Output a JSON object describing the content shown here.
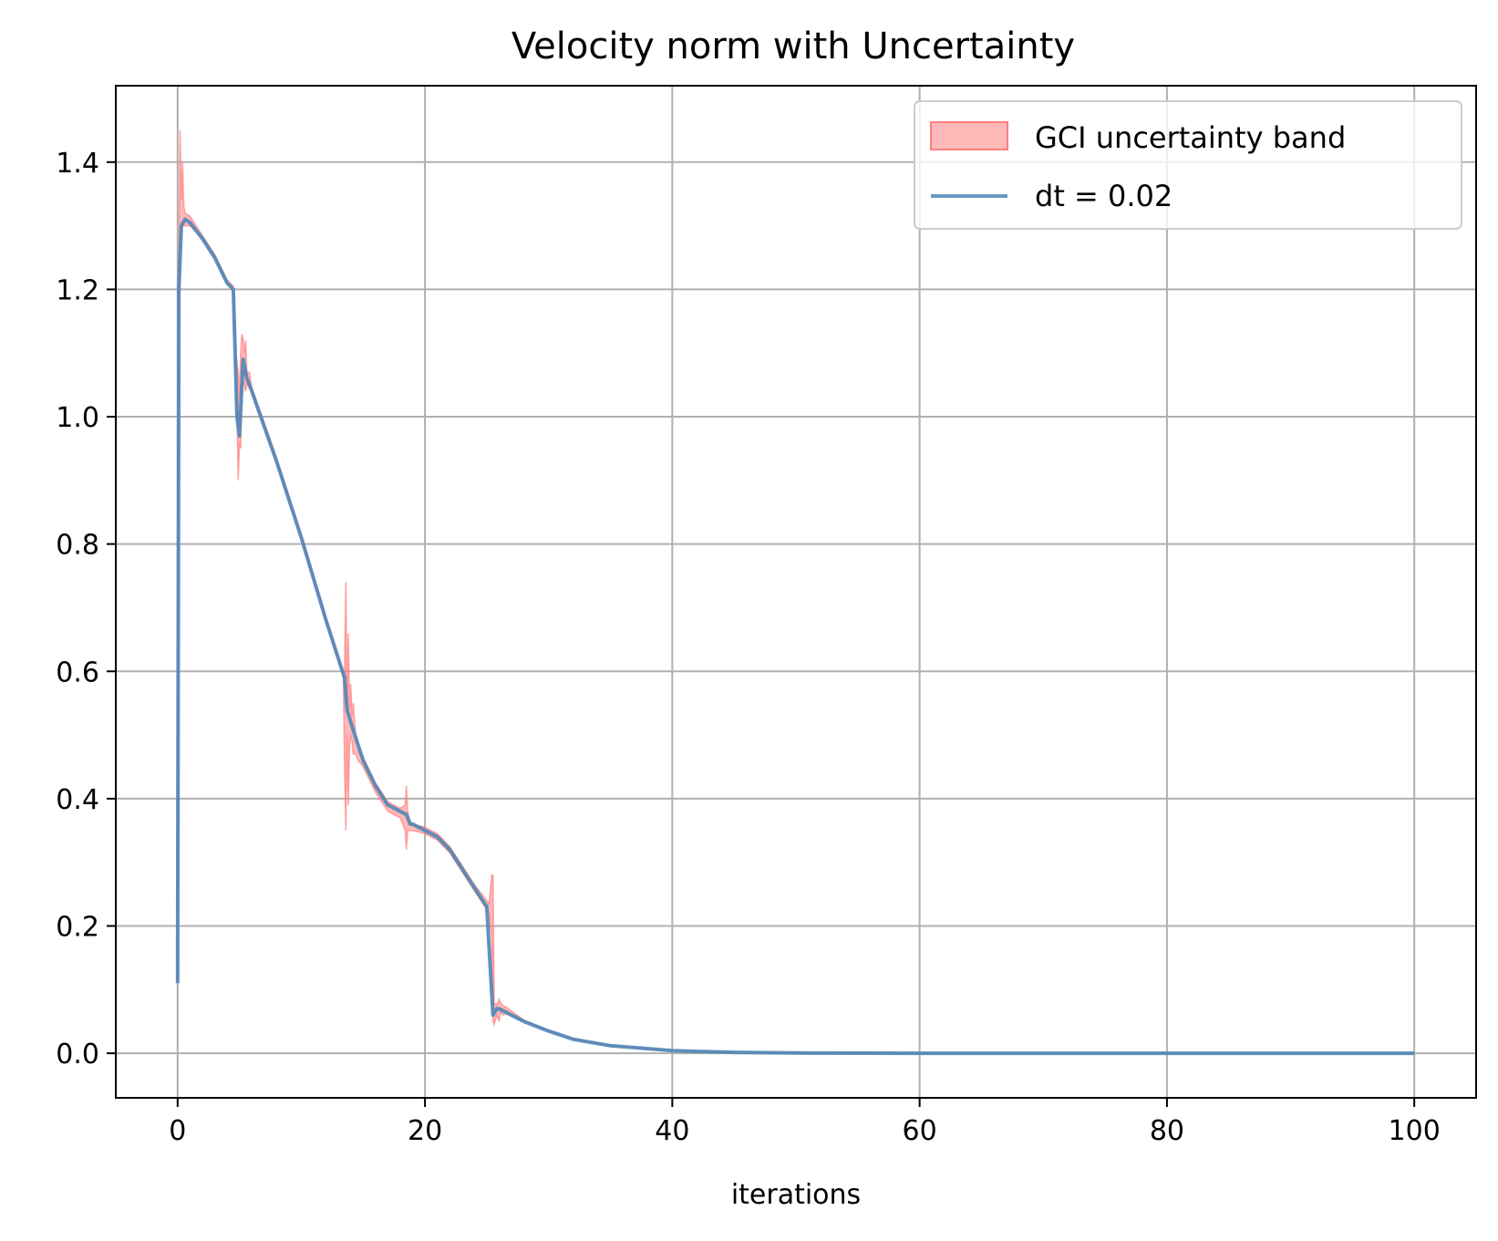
{
  "chart_data": {
    "type": "line",
    "title": "Velocity norm with Uncertainty",
    "xlabel": "iterations",
    "ylabel": "",
    "xlim": [
      -5,
      105
    ],
    "ylim": [
      -0.07,
      1.52
    ],
    "xticks": [
      0,
      20,
      40,
      60,
      80,
      100
    ],
    "xtick_labels": [
      "0",
      "20",
      "40",
      "60",
      "80",
      "100"
    ],
    "yticks": [
      0.0,
      0.2,
      0.4,
      0.6,
      0.8,
      1.0,
      1.2,
      1.4
    ],
    "ytick_labels": [
      "0.0",
      "0.2",
      "0.4",
      "0.6",
      "0.8",
      "1.0",
      "1.2",
      "1.4"
    ],
    "grid": true,
    "legend_position": "top-right",
    "colors": {
      "band": "#ff7f7f",
      "line": "#4f86b8",
      "grid": "#b0b0b0"
    },
    "series": [
      {
        "name": "dt = 0.02",
        "kind": "line",
        "x": [
          0,
          0.1,
          0.3,
          0.6,
          1,
          2,
          3,
          4,
          4.5,
          4.8,
          5.0,
          5.3,
          5.6,
          6,
          8,
          10,
          12,
          13.5,
          13.7,
          14,
          15,
          16,
          17,
          18,
          18.5,
          18.8,
          19,
          20,
          21,
          22,
          23,
          24,
          25,
          25.5,
          25.8,
          26,
          26.5,
          28,
          30,
          32,
          35,
          40,
          45,
          50,
          60,
          70,
          80,
          90,
          100
        ],
        "y": [
          0.11,
          1.2,
          1.3,
          1.31,
          1.305,
          1.28,
          1.25,
          1.21,
          1.2,
          1.0,
          0.97,
          1.09,
          1.06,
          1.04,
          0.93,
          0.81,
          0.68,
          0.59,
          0.54,
          0.52,
          0.46,
          0.42,
          0.39,
          0.38,
          0.375,
          0.36,
          0.36,
          0.35,
          0.34,
          0.32,
          0.29,
          0.26,
          0.23,
          0.06,
          0.07,
          0.07,
          0.065,
          0.05,
          0.035,
          0.022,
          0.012,
          0.004,
          0.0015,
          0.0005,
          0.0001,
          0,
          0,
          0,
          0
        ]
      },
      {
        "name": "GCI uncertainty band",
        "kind": "band",
        "x": [
          0,
          0.1,
          0.2,
          0.3,
          0.4,
          0.5,
          0.6,
          1,
          2,
          3,
          4,
          4.5,
          4.7,
          4.9,
          5.0,
          5.1,
          5.2,
          5.3,
          5.4,
          5.5,
          5.6,
          5.8,
          6,
          8,
          10,
          12,
          13.4,
          13.5,
          13.6,
          13.7,
          13.8,
          13.9,
          14.0,
          14.1,
          14.2,
          14.4,
          14.6,
          15,
          16,
          17,
          18,
          18.4,
          18.5,
          18.6,
          18.8,
          19,
          20,
          21,
          22,
          23,
          24,
          25.2,
          25.4,
          25.5,
          25.6,
          25.8,
          26.0,
          26.1,
          26.3,
          26.6,
          28,
          30,
          32,
          35,
          40,
          45,
          50,
          60,
          70,
          80,
          90,
          100
        ],
        "lower": [
          0.11,
          1.15,
          1.27,
          1.29,
          1.3,
          1.3,
          1.3,
          1.3,
          1.28,
          1.25,
          1.21,
          1.2,
          1.1,
          0.9,
          0.96,
          0.95,
          1.05,
          1.06,
          1.05,
          1.04,
          1.05,
          1.05,
          1.04,
          0.93,
          0.81,
          0.68,
          0.59,
          0.45,
          0.35,
          0.5,
          0.39,
          0.48,
          0.5,
          0.49,
          0.47,
          0.47,
          0.46,
          0.45,
          0.41,
          0.38,
          0.37,
          0.35,
          0.32,
          0.35,
          0.35,
          0.35,
          0.345,
          0.335,
          0.315,
          0.285,
          0.255,
          0.22,
          0.18,
          0.05,
          0.045,
          0.06,
          0.05,
          0.065,
          0.06,
          0.063,
          0.05,
          0.035,
          0.022,
          0.012,
          0.004,
          0.0015,
          0.0005,
          0.0001,
          0,
          0,
          0,
          0
        ],
        "upper": [
          0.11,
          1.26,
          1.45,
          1.34,
          1.4,
          1.33,
          1.32,
          1.315,
          1.285,
          1.255,
          1.215,
          1.205,
          1.1,
          1.07,
          1.03,
          1.1,
          1.13,
          1.12,
          1.1,
          1.12,
          1.07,
          1.07,
          1.045,
          0.935,
          0.815,
          0.685,
          0.595,
          0.6,
          0.74,
          0.55,
          0.66,
          0.54,
          0.58,
          0.53,
          0.55,
          0.5,
          0.48,
          0.465,
          0.425,
          0.395,
          0.385,
          0.39,
          0.42,
          0.38,
          0.365,
          0.36,
          0.355,
          0.345,
          0.325,
          0.295,
          0.265,
          0.235,
          0.28,
          0.28,
          0.08,
          0.075,
          0.085,
          0.08,
          0.075,
          0.072,
          0.052,
          0.036,
          0.023,
          0.012,
          0.004,
          0.0015,
          0.0005,
          0.0001,
          0,
          0,
          0,
          0
        ]
      }
    ]
  }
}
